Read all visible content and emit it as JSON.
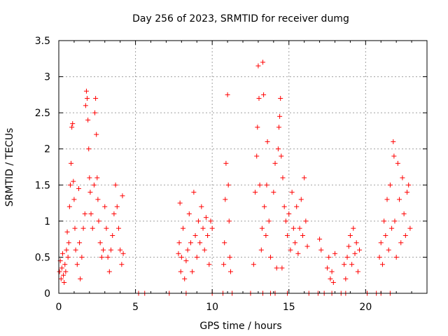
{
  "chart_data": {
    "type": "scatter",
    "title": "Day 256 of 2023, SRMTID for receiver dumg",
    "xlabel": "GPS time / hours",
    "ylabel": "SRMTID / TECUs",
    "xlim": [
      0,
      24
    ],
    "ylim": [
      0,
      3.5
    ],
    "x_ticks": [
      0,
      5,
      10,
      15,
      20
    ],
    "x_tick_labels": [
      "0",
      "5",
      "10",
      "15",
      "20"
    ],
    "y_ticks": [
      0,
      0.5,
      1,
      1.5,
      2,
      2.5,
      3,
      3.5
    ],
    "y_tick_labels": [
      "0",
      "0.5",
      "1",
      "1.5",
      "2",
      "2.5",
      "3",
      "3.5"
    ],
    "grid": true,
    "marker": "plus",
    "color": "#ff0000",
    "series": [
      {
        "name": "SRMTID",
        "points": [
          [
            0.05,
            0.3
          ],
          [
            0.1,
            0.45
          ],
          [
            0.15,
            0.2
          ],
          [
            0.2,
            0.35
          ],
          [
            0.25,
            0.55
          ],
          [
            0.3,
            0.25
          ],
          [
            0.35,
            0.15
          ],
          [
            0.4,
            0.4
          ],
          [
            0.45,
            0.3
          ],
          [
            0.5,
            0.6
          ],
          [
            0.55,
            0.85
          ],
          [
            0.6,
            0.5
          ],
          [
            0.65,
            0.7
          ],
          [
            0.7,
            1.2
          ],
          [
            0.75,
            1.5
          ],
          [
            0.8,
            1.8
          ],
          [
            0.85,
            2.3
          ],
          [
            0.9,
            2.35
          ],
          [
            0.95,
            1.55
          ],
          [
            1.0,
            1.3
          ],
          [
            1.05,
            0.9
          ],
          [
            1.1,
            0.6
          ],
          [
            1.2,
            0.4
          ],
          [
            1.3,
            1.45
          ],
          [
            1.35,
            0.7
          ],
          [
            1.4,
            0.2
          ],
          [
            1.5,
            0.5
          ],
          [
            1.6,
            0.9
          ],
          [
            1.7,
            1.1
          ],
          [
            1.75,
            2.6
          ],
          [
            1.8,
            2.8
          ],
          [
            1.85,
            2.7
          ],
          [
            1.9,
            2.4
          ],
          [
            1.95,
            2.0
          ],
          [
            2.0,
            1.6
          ],
          [
            2.05,
            1.4
          ],
          [
            2.1,
            1.1
          ],
          [
            2.2,
            0.9
          ],
          [
            2.3,
            1.5
          ],
          [
            2.35,
            2.5
          ],
          [
            2.4,
            2.7
          ],
          [
            2.45,
            2.2
          ],
          [
            2.5,
            1.6
          ],
          [
            2.55,
            1.3
          ],
          [
            2.6,
            1.0
          ],
          [
            2.7,
            0.7
          ],
          [
            2.8,
            0.5
          ],
          [
            2.9,
            0.6
          ],
          [
            3.0,
            1.2
          ],
          [
            3.1,
            0.9
          ],
          [
            3.2,
            0.5
          ],
          [
            3.3,
            0.3
          ],
          [
            3.4,
            0.6
          ],
          [
            3.5,
            0.8
          ],
          [
            3.6,
            1.1
          ],
          [
            3.7,
            1.5
          ],
          [
            3.8,
            1.2
          ],
          [
            3.9,
            0.9
          ],
          [
            4.0,
            0.6
          ],
          [
            4.1,
            0.4
          ],
          [
            4.15,
            1.35
          ],
          [
            4.2,
            0.55
          ],
          [
            7.8,
            0.55
          ],
          [
            7.85,
            0.7
          ],
          [
            7.9,
            1.25
          ],
          [
            7.95,
            0.3
          ],
          [
            8.0,
            0.5
          ],
          [
            8.1,
            0.9
          ],
          [
            8.2,
            0.2
          ],
          [
            8.3,
            0.45
          ],
          [
            8.4,
            0.6
          ],
          [
            8.5,
            1.1
          ],
          [
            8.6,
            0.7
          ],
          [
            8.7,
            0.3
          ],
          [
            8.8,
            1.4
          ],
          [
            8.9,
            0.8
          ],
          [
            9.0,
            0.5
          ],
          [
            9.1,
            1.0
          ],
          [
            9.2,
            0.7
          ],
          [
            9.3,
            1.2
          ],
          [
            9.4,
            0.9
          ],
          [
            9.5,
            0.6
          ],
          [
            9.6,
            1.05
          ],
          [
            9.7,
            0.8
          ],
          [
            9.8,
            0.4
          ],
          [
            9.9,
            1.0
          ],
          [
            10.0,
            0.9
          ],
          [
            10.75,
            0.4
          ],
          [
            10.8,
            0.7
          ],
          [
            10.85,
            1.3
          ],
          [
            10.9,
            1.8
          ],
          [
            11.0,
            2.75
          ],
          [
            11.05,
            1.5
          ],
          [
            11.1,
            1.0
          ],
          [
            11.15,
            0.5
          ],
          [
            11.2,
            0.3
          ],
          [
            12.7,
            0.4
          ],
          [
            12.8,
            1.4
          ],
          [
            12.9,
            1.9
          ],
          [
            12.95,
            2.3
          ],
          [
            13.0,
            3.15
          ],
          [
            13.05,
            2.7
          ],
          [
            13.1,
            1.5
          ],
          [
            13.2,
            0.6
          ],
          [
            13.25,
            0.9
          ],
          [
            13.3,
            3.2
          ],
          [
            13.35,
            2.75
          ],
          [
            13.4,
            1.2
          ],
          [
            13.5,
            0.8
          ],
          [
            13.55,
            1.5
          ],
          [
            13.6,
            2.1
          ],
          [
            13.7,
            1.0
          ],
          [
            13.8,
            0.5
          ],
          [
            14.0,
            1.4
          ],
          [
            14.1,
            1.8
          ],
          [
            14.2,
            0.35
          ],
          [
            14.3,
            2.0
          ],
          [
            14.35,
            2.3
          ],
          [
            14.4,
            2.45
          ],
          [
            14.45,
            2.7
          ],
          [
            14.5,
            1.9
          ],
          [
            14.55,
            0.35
          ],
          [
            14.6,
            1.6
          ],
          [
            14.7,
            1.2
          ],
          [
            14.8,
            1.0
          ],
          [
            14.9,
            0.8
          ],
          [
            15.0,
            1.1
          ],
          [
            15.1,
            0.6
          ],
          [
            15.2,
            1.4
          ],
          [
            15.3,
            0.9
          ],
          [
            15.4,
            0.7
          ],
          [
            15.5,
            1.2
          ],
          [
            15.6,
            0.55
          ],
          [
            15.7,
            0.9
          ],
          [
            15.8,
            1.3
          ],
          [
            15.9,
            0.8
          ],
          [
            16.0,
            1.6
          ],
          [
            16.1,
            1.0
          ],
          [
            16.2,
            0.65
          ],
          [
            17.0,
            0.75
          ],
          [
            17.1,
            0.6
          ],
          [
            17.5,
            0.35
          ],
          [
            17.6,
            0.5
          ],
          [
            17.7,
            0.2
          ],
          [
            17.8,
            0.3
          ],
          [
            17.9,
            0.15
          ],
          [
            18.0,
            0.55
          ],
          [
            18.6,
            0.4
          ],
          [
            18.7,
            0.2
          ],
          [
            18.8,
            0.5
          ],
          [
            18.9,
            0.65
          ],
          [
            19.0,
            0.8
          ],
          [
            19.1,
            0.4
          ],
          [
            19.2,
            0.9
          ],
          [
            19.3,
            0.55
          ],
          [
            19.4,
            0.7
          ],
          [
            19.5,
            0.3
          ],
          [
            19.6,
            0.6
          ],
          [
            20.9,
            0.5
          ],
          [
            21.0,
            0.7
          ],
          [
            21.1,
            0.4
          ],
          [
            21.2,
            1.0
          ],
          [
            21.3,
            0.8
          ],
          [
            21.4,
            1.3
          ],
          [
            21.5,
            0.6
          ],
          [
            21.6,
            1.5
          ],
          [
            21.7,
            0.9
          ],
          [
            21.8,
            2.1
          ],
          [
            21.85,
            1.9
          ],
          [
            21.9,
            1.0
          ],
          [
            22.0,
            0.5
          ],
          [
            22.1,
            1.8
          ],
          [
            22.2,
            1.3
          ],
          [
            22.3,
            0.7
          ],
          [
            22.4,
            1.6
          ],
          [
            22.5,
            1.1
          ],
          [
            22.6,
            0.8
          ],
          [
            22.7,
            1.4
          ],
          [
            22.8,
            1.5
          ],
          [
            22.9,
            0.9
          ]
        ],
        "zero_points": [
          [
            5.2,
            0
          ],
          [
            5.6,
            0
          ],
          [
            7.2,
            0
          ],
          [
            8.3,
            0
          ],
          [
            10.0,
            0
          ],
          [
            10.7,
            0
          ],
          [
            11.3,
            0
          ],
          [
            12.5,
            0
          ],
          [
            13.3,
            0
          ],
          [
            13.8,
            0
          ],
          [
            14.1,
            0
          ],
          [
            14.9,
            0
          ],
          [
            16.3,
            0
          ],
          [
            16.9,
            0
          ],
          [
            17.3,
            0
          ],
          [
            17.8,
            0
          ],
          [
            18.4,
            0
          ],
          [
            18.7,
            0
          ],
          [
            20.1,
            0
          ],
          [
            20.7,
            0
          ],
          [
            21.0,
            0
          ],
          [
            21.6,
            0
          ]
        ]
      }
    ]
  }
}
